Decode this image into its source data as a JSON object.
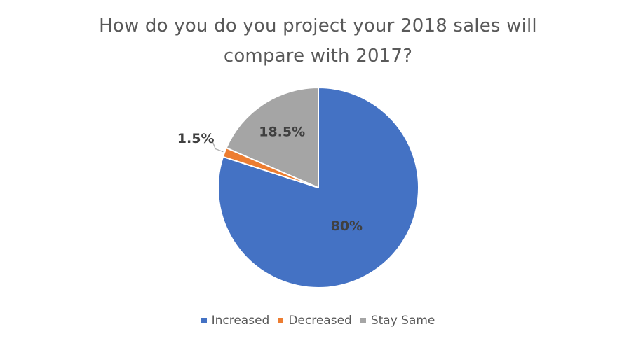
{
  "chart_data": {
    "type": "pie",
    "title_lines": [
      "How do you do you project your 2018 sales will",
      "compare with 2017?"
    ],
    "categories": [
      "Increased",
      "Decreased",
      "Stay Same"
    ],
    "values": [
      80,
      1.5,
      18.5
    ],
    "labels": [
      "80%",
      "1.5%",
      "18.5%"
    ],
    "colors": [
      "#4472C4",
      "#ED7D31",
      "#A5A5A5"
    ],
    "start_angle_deg": 0,
    "direction": "clockwise",
    "legend_position": "bottom",
    "data_labels": "inside-end"
  }
}
